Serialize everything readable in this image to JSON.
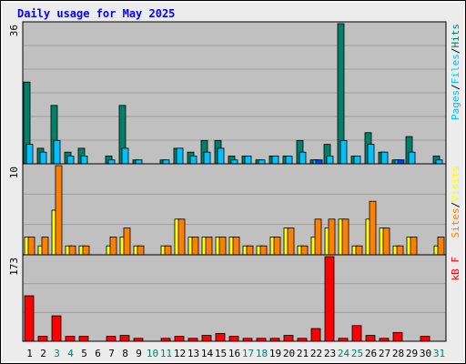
{
  "chart_data": {
    "type": "bar",
    "title": "Daily usage for May 2025",
    "categories": [
      "1",
      "2",
      "3",
      "4",
      "5",
      "6",
      "7",
      "8",
      "9",
      "10",
      "11",
      "12",
      "13",
      "14",
      "15",
      "16",
      "17",
      "18",
      "19",
      "20",
      "21",
      "22",
      "23",
      "24",
      "25",
      "26",
      "27",
      "28",
      "29",
      "30",
      "31"
    ],
    "weekend_days": [
      "3",
      "4",
      "10",
      "11",
      "17",
      "18",
      "24",
      "25",
      "31"
    ],
    "panels": [
      {
        "id": "hits",
        "max_label": "36",
        "ylim": [
          0,
          36
        ],
        "legend": [
          "Pages",
          "Files",
          "Hits"
        ],
        "series": [
          {
            "name": "Hits",
            "color": "#008066",
            "values": [
              21,
              4,
              15,
              3,
              4,
              0,
              2,
              15,
              1,
              0,
              1,
              4,
              3,
              6,
              6,
              2,
              2,
              1,
              2,
              2,
              6,
              1,
              5,
              36,
              2,
              8,
              3,
              1,
              7,
              0,
              2
            ]
          },
          {
            "name": "Files",
            "color": "#00c0ff",
            "values": [
              5,
              3,
              6,
              2,
              2,
              0,
              1,
              4,
              1,
              0,
              1,
              4,
              2,
              3,
              4,
              1,
              2,
              1,
              2,
              2,
              3,
              1,
              2,
              6,
              2,
              5,
              3,
              1,
              3,
              0,
              1
            ]
          },
          {
            "name": "Pages",
            "color": "#0040ff",
            "values": [
              0,
              0,
              0,
              0,
              0,
              0,
              0,
              0,
              0,
              0,
              0,
              0,
              0,
              0,
              0,
              0,
              0,
              0,
              0,
              0,
              0,
              1,
              0,
              0,
              0,
              0,
              0,
              1,
              0,
              0,
              0
            ]
          }
        ]
      },
      {
        "id": "visits",
        "max_label": "10",
        "ylim": [
          0,
          10
        ],
        "legend": [
          "Sites",
          "Visits"
        ],
        "series": [
          {
            "name": "Visits",
            "color": "#ffff00",
            "values": [
              2,
              1,
              5,
              1,
              1,
              0,
              1,
              2,
              1,
              0,
              1,
              4,
              2,
              2,
              2,
              2,
              1,
              1,
              2,
              3,
              1,
              2,
              3,
              4,
              1,
              4,
              3,
              1,
              2,
              0,
              1
            ]
          },
          {
            "name": "Sites",
            "color": "#ff8000",
            "values": [
              2,
              2,
              10,
              1,
              1,
              0,
              2,
              3,
              1,
              0,
              1,
              4,
              2,
              2,
              2,
              2,
              1,
              1,
              2,
              3,
              1,
              4,
              4,
              4,
              1,
              6,
              3,
              1,
              2,
              0,
              2
            ]
          }
        ]
      },
      {
        "id": "kbytes",
        "max_label": "173",
        "ylim": [
          0,
          173
        ],
        "legend": [
          "kB F"
        ],
        "series": [
          {
            "name": "kB F",
            "color": "#ff0000",
            "values": [
              93,
              10,
              52,
              10,
              10,
              0,
              10,
              12,
              6,
              0,
              6,
              10,
              6,
              12,
              16,
              10,
              6,
              6,
              6,
              12,
              6,
              26,
              173,
              6,
              32,
              12,
              6,
              18,
              0,
              10,
              0
            ]
          }
        ]
      }
    ]
  },
  "colors": {
    "panel_bg": "#c0c0c0",
    "frame_bg": "#ececec",
    "grid": "#a0a0a0",
    "title": "#0000ff",
    "weekday_label": "#000000",
    "weekend_label": "#008066",
    "legend_slash": "#000000"
  }
}
